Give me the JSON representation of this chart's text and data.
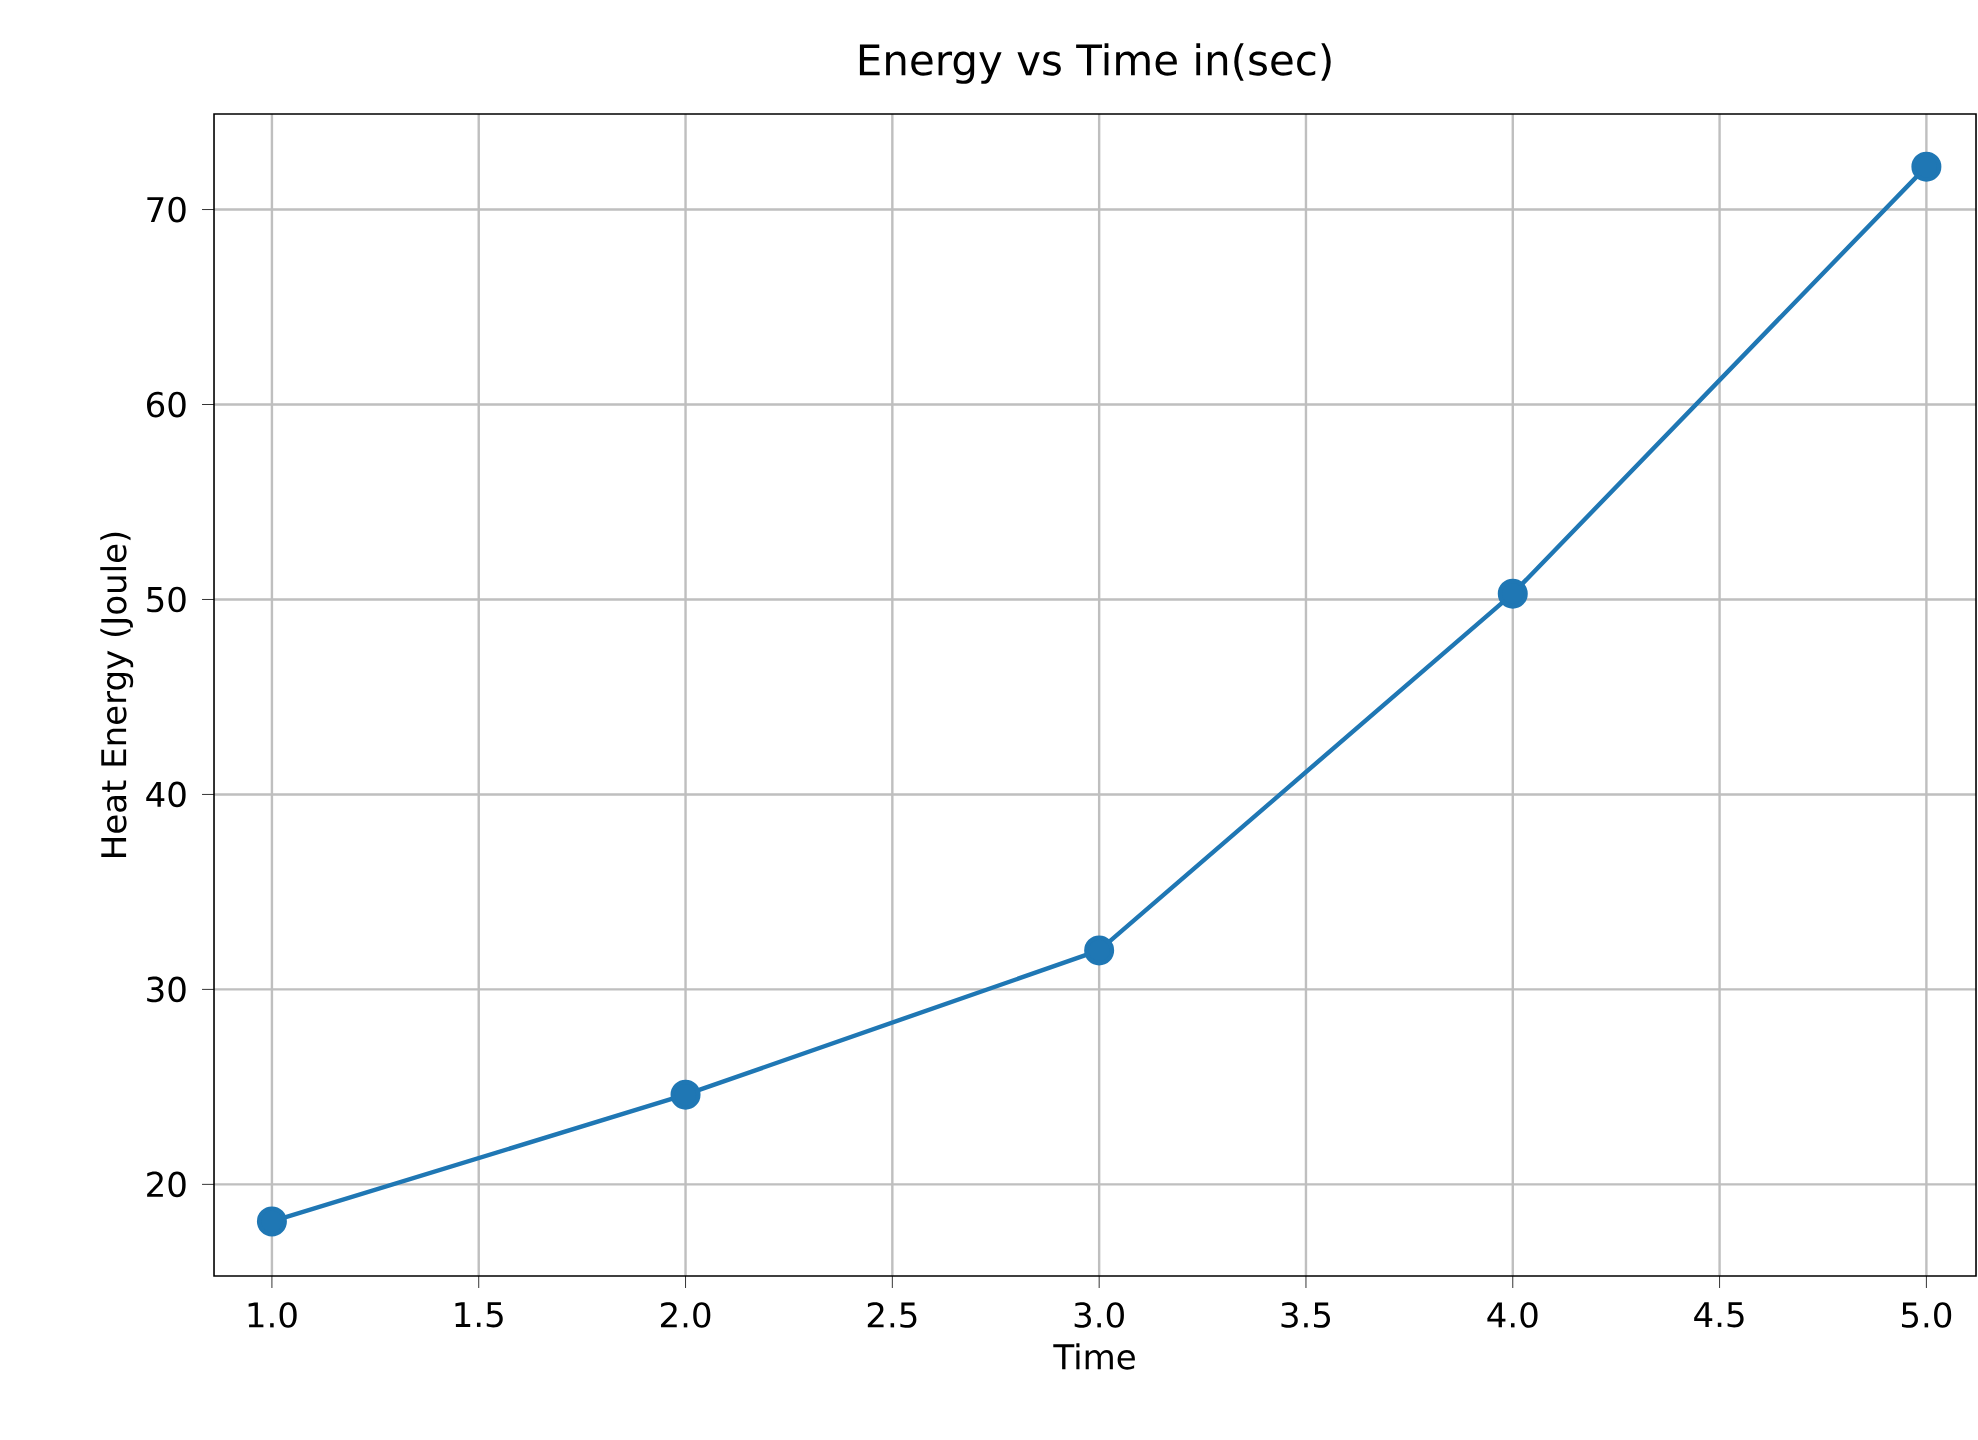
{
  "chart_data": {
    "type": "line",
    "title": "Energy vs Time in(sec)",
    "xlabel": "Time",
    "ylabel": "Heat Energy (Joule)",
    "x": [
      1,
      2,
      3,
      4,
      5
    ],
    "series": [
      {
        "color": "#1f77b4",
        "values": [
          18.1,
          24.6,
          32.0,
          50.3,
          72.2
        ]
      }
    ],
    "xlim": [
      0.86,
      5.12
    ],
    "ylim": [
      15.3,
      74.9
    ],
    "xticks": [
      {
        "value": 1.0,
        "label": "1.0"
      },
      {
        "value": 1.5,
        "label": "1.5"
      },
      {
        "value": 2.0,
        "label": "2.0"
      },
      {
        "value": 2.5,
        "label": "2.5"
      },
      {
        "value": 3.0,
        "label": "3.0"
      },
      {
        "value": 3.5,
        "label": "3.5"
      },
      {
        "value": 4.0,
        "label": "4.0"
      },
      {
        "value": 4.5,
        "label": "4.5"
      },
      {
        "value": 5.0,
        "label": "5.0"
      }
    ],
    "yticks": [
      20,
      30,
      40,
      50,
      60,
      70
    ],
    "grid": true,
    "marker": "circle",
    "line_style": "solid"
  }
}
